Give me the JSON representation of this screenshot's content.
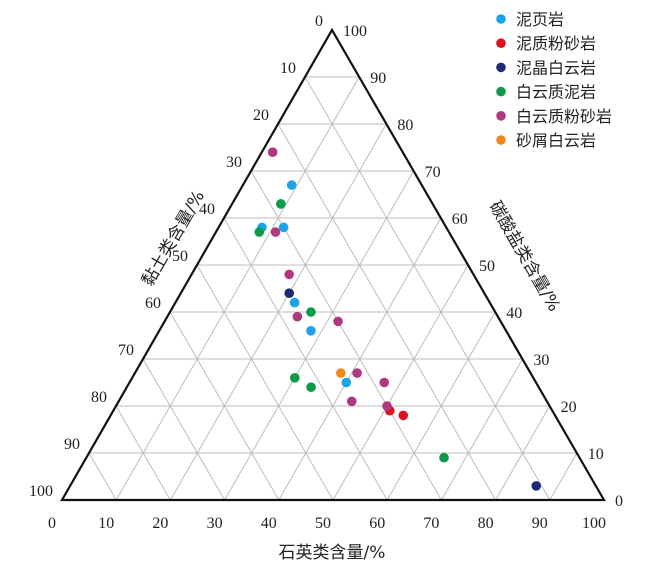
{
  "chart_data": {
    "type": "ternary",
    "axes": {
      "bottom": {
        "label": "石英类含量/%",
        "ticks": [
          "0",
          "10",
          "20",
          "30",
          "40",
          "50",
          "60",
          "70",
          "80",
          "90",
          "100"
        ]
      },
      "left": {
        "label": "黏土类含量/%",
        "ticks": [
          "0",
          "10",
          "20",
          "30",
          "40",
          "50",
          "60",
          "70",
          "80",
          "90",
          "100"
        ]
      },
      "right": {
        "label": "碳酸盐类含量/%",
        "ticks": [
          "0",
          "10",
          "20",
          "30",
          "40",
          "50",
          "60",
          "70",
          "80",
          "90",
          "100"
        ]
      }
    },
    "range": [
      0,
      100
    ],
    "grid": true,
    "legend_position": "top-right",
    "series": [
      {
        "name": "泥页岩",
        "color": "#1aa3e8",
        "points": [
          {
            "quartz": 9,
            "carbonate": 67,
            "clay": 24
          },
          {
            "quartz": 9,
            "carbonate": 63,
            "clay": 28
          },
          {
            "quartz": 8,
            "carbonate": 58,
            "clay": 34
          },
          {
            "quartz": 12,
            "carbonate": 58,
            "clay": 30
          },
          {
            "quartz": 22,
            "carbonate": 42,
            "clay": 36
          },
          {
            "quartz": 28,
            "carbonate": 36,
            "clay": 36
          },
          {
            "quartz": 40,
            "carbonate": 25,
            "clay": 35
          }
        ]
      },
      {
        "name": "泥质粉砂岩",
        "color": "#e0101e",
        "points": [
          {
            "quartz": 51,
            "carbonate": 19,
            "clay": 30
          },
          {
            "quartz": 54,
            "carbonate": 18,
            "clay": 28
          }
        ]
      },
      {
        "name": "泥晶白云岩",
        "color": "#1e2a78",
        "points": [
          {
            "quartz": 20,
            "carbonate": 44,
            "clay": 36
          },
          {
            "quartz": 86,
            "carbonate": 3,
            "clay": 11
          }
        ]
      },
      {
        "name": "白云质泥岩",
        "color": "#0e9a48",
        "points": [
          {
            "quartz": 9,
            "carbonate": 63,
            "clay": 28
          },
          {
            "quartz": 8,
            "carbonate": 57,
            "clay": 35
          },
          {
            "quartz": 26,
            "carbonate": 40,
            "clay": 34
          },
          {
            "quartz": 30,
            "carbonate": 26,
            "clay": 44
          },
          {
            "quartz": 34,
            "carbonate": 24,
            "clay": 42
          },
          {
            "quartz": 66,
            "carbonate": 9,
            "clay": 25
          }
        ]
      },
      {
        "name": "白云质粉砂岩",
        "color": "#b0387f",
        "points": [
          {
            "quartz": 2,
            "carbonate": 74,
            "clay": 24
          },
          {
            "quartz": 11,
            "carbonate": 57,
            "clay": 32
          },
          {
            "quartz": 18,
            "carbonate": 48,
            "clay": 34
          },
          {
            "quartz": 24,
            "carbonate": 39,
            "clay": 37
          },
          {
            "quartz": 32,
            "carbonate": 38,
            "clay": 30
          },
          {
            "quartz": 41,
            "carbonate": 27,
            "clay": 32
          },
          {
            "quartz": 47,
            "carbonate": 25,
            "clay": 28
          },
          {
            "quartz": 43,
            "carbonate": 21,
            "clay": 36
          },
          {
            "quartz": 50,
            "carbonate": 20,
            "clay": 30
          }
        ]
      },
      {
        "name": "砂屑白云岩",
        "color": "#f0891a",
        "points": [
          {
            "quartz": 38,
            "carbonate": 27,
            "clay": 35
          }
        ]
      }
    ]
  }
}
